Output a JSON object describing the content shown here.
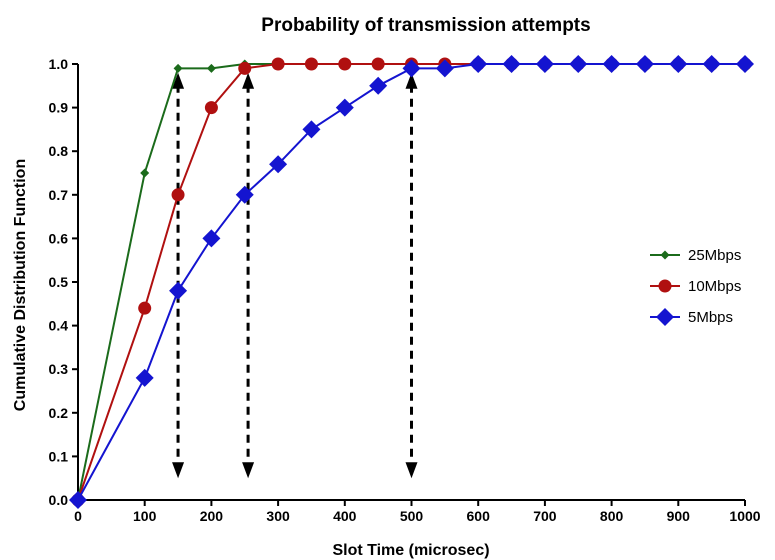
{
  "chart_data": {
    "type": "line",
    "title": "Probability of transmission attempts",
    "xlabel": "Slot Time (microsec)",
    "ylabel": "Cumulative Distribution Function",
    "xlim": [
      0,
      1000
    ],
    "ylim": [
      0,
      1.0
    ],
    "xticks": [
      "0",
      "100",
      "200",
      "300",
      "400",
      "500",
      "600",
      "700",
      "800",
      "900",
      "1000"
    ],
    "yticks": [
      "0.0",
      "0.1",
      "0.2",
      "0.3",
      "0.4",
      "0.5",
      "0.6",
      "0.7",
      "0.8",
      "0.9",
      "1.0"
    ],
    "grid": false,
    "legend_position": "right",
    "series": [
      {
        "name": "25Mbps",
        "color": "#1b6b1b",
        "marker": "small-diamond",
        "x": [
          0,
          100,
          150,
          200,
          250,
          300,
          350,
          400,
          450,
          500,
          550,
          600,
          650,
          700,
          750,
          800,
          850,
          900,
          950,
          1000
        ],
        "y": [
          0,
          0.75,
          0.99,
          0.99,
          1.0,
          1.0,
          1.0,
          1.0,
          1.0,
          1.0,
          1.0,
          1.0,
          1.0,
          1.0,
          1.0,
          1.0,
          1.0,
          1.0,
          1.0,
          1.0
        ]
      },
      {
        "name": "10Mbps",
        "color": "#b01010",
        "marker": "circle",
        "x": [
          0,
          100,
          150,
          200,
          250,
          300,
          350,
          400,
          450,
          500,
          550,
          600,
          650,
          700,
          750,
          800,
          850,
          900,
          950,
          1000
        ],
        "y": [
          0,
          0.44,
          0.7,
          0.9,
          0.99,
          1.0,
          1.0,
          1.0,
          1.0,
          1.0,
          1.0,
          1.0,
          1.0,
          1.0,
          1.0,
          1.0,
          1.0,
          1.0,
          1.0,
          1.0
        ]
      },
      {
        "name": "5Mbps",
        "color": "#1414d0",
        "marker": "large-diamond",
        "x": [
          0,
          100,
          150,
          200,
          250,
          300,
          350,
          400,
          450,
          500,
          550,
          600,
          650,
          700,
          750,
          800,
          850,
          900,
          950,
          1000
        ],
        "y": [
          0,
          0.28,
          0.48,
          0.6,
          0.7,
          0.77,
          0.85,
          0.9,
          0.95,
          0.99,
          0.99,
          1.0,
          1.0,
          1.0,
          1.0,
          1.0,
          1.0,
          1.0,
          1.0,
          1.0
        ]
      }
    ],
    "annotations": [
      {
        "type": "double-arrow",
        "x": 150,
        "y_from": 0.05,
        "y_to": 0.98
      },
      {
        "type": "double-arrow",
        "x": 255,
        "y_from": 0.05,
        "y_to": 0.98
      },
      {
        "type": "double-arrow",
        "x": 500,
        "y_from": 0.05,
        "y_to": 0.98
      }
    ]
  }
}
